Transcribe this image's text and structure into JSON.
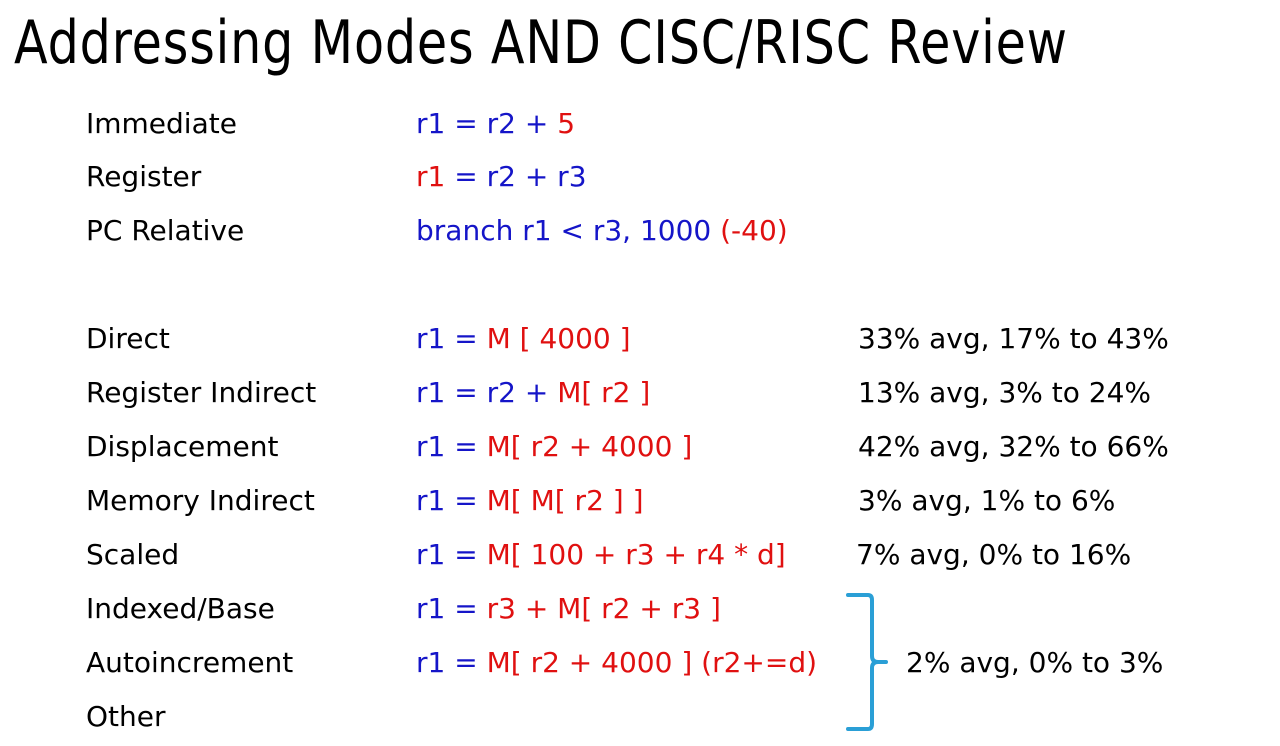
{
  "title": "Addressing Modes AND CISC/RISC Review",
  "colors": {
    "blue": "#1515c8",
    "red": "#e01010",
    "bracket": "#2a9fd6"
  },
  "rows": [
    {
      "label": "Immediate",
      "expr": [
        {
          "text": "r1 = r2 + ",
          "color": "blue"
        },
        {
          "text": "5",
          "color": "red"
        }
      ],
      "stat": ""
    },
    {
      "label": "Register",
      "expr": [
        {
          "text": "r1",
          "color": "red"
        },
        {
          "text": " = r2 + r3",
          "color": "blue"
        }
      ],
      "stat": ""
    },
    {
      "label": "PC Relative",
      "expr": [
        {
          "text": "branch r1 < r3, 1000 ",
          "color": "blue"
        },
        {
          "text": "(-40)",
          "color": "red"
        }
      ],
      "stat": ""
    },
    {
      "label": "Direct",
      "expr": [
        {
          "text": "r1 = ",
          "color": "blue"
        },
        {
          "text": "M [ 4000 ]",
          "color": "red"
        }
      ],
      "stat": "33% avg, 17% to 43%"
    },
    {
      "label": "Register Indirect",
      "expr": [
        {
          "text": "r1 = r2 + ",
          "color": "blue"
        },
        {
          "text": "M[ r2 ]",
          "color": "red"
        }
      ],
      "stat": "13% avg, 3% to 24%"
    },
    {
      "label": "Displacement",
      "expr": [
        {
          "text": "r1 = ",
          "color": "blue"
        },
        {
          "text": "M[ r2 + 4000 ]",
          "color": "red"
        }
      ],
      "stat": "42% avg, 32% to 66%"
    },
    {
      "label": "Memory Indirect",
      "expr": [
        {
          "text": "r1 = ",
          "color": "blue"
        },
        {
          "text": "M[ M[ r2 ] ]",
          "color": "red"
        }
      ],
      "stat": "3% avg, 1% to 6%"
    },
    {
      "label": "Scaled",
      "expr": [
        {
          "text": "r1 = ",
          "color": "blue"
        },
        {
          "text": "M[ 100 + r3 + r4 * d]",
          "color": "red"
        }
      ],
      "stat": "7% avg, 0% to 16%"
    },
    {
      "label": "Indexed/Base",
      "expr": [
        {
          "text": "r1 = ",
          "color": "blue"
        },
        {
          "text": "r3 + M[ r2 + r3 ]",
          "color": "red"
        }
      ],
      "stat": ""
    },
    {
      "label": "Autoincrement",
      "expr": [
        {
          "text": "r1 = ",
          "color": "blue"
        },
        {
          "text": "M[ r2 + 4000 ] (r2+=d)",
          "color": "red"
        }
      ],
      "stat": ""
    },
    {
      "label": "Other",
      "expr": [],
      "stat": ""
    }
  ],
  "group_stat": "2% avg, 0% to 3%"
}
